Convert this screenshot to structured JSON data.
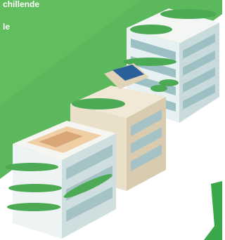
{
  "texts": [
    "chillende",
    "le"
  ]
}
